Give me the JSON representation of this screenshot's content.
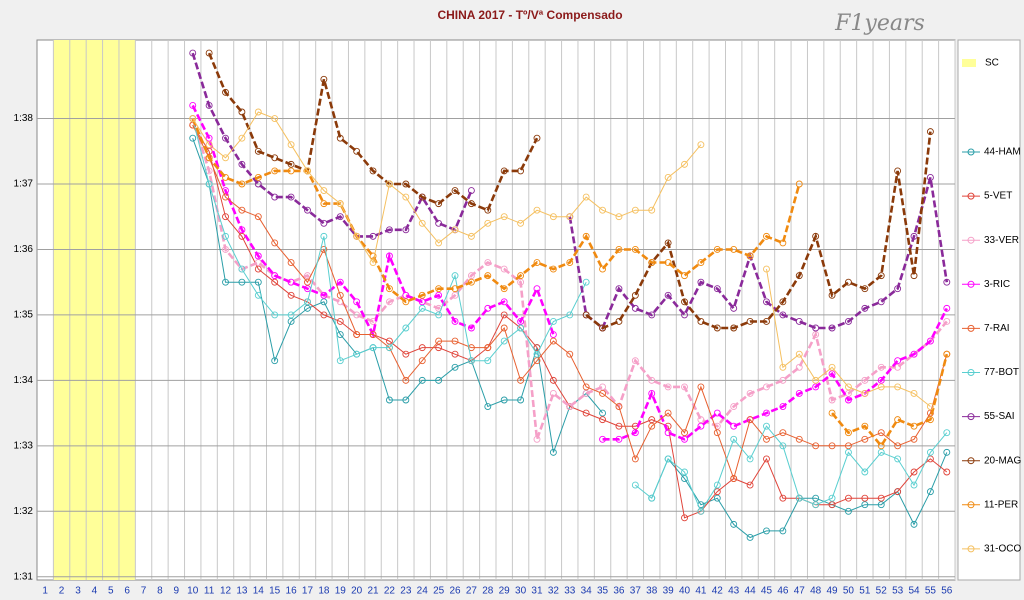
{
  "chart_data": {
    "type": "line",
    "title": "CHINA 2017 - Tº/Vª Compensado",
    "logo": "F1years",
    "x": [
      1,
      2,
      3,
      4,
      5,
      6,
      7,
      8,
      9,
      10,
      11,
      12,
      13,
      14,
      15,
      16,
      17,
      18,
      19,
      20,
      21,
      22,
      23,
      24,
      25,
      26,
      27,
      28,
      29,
      30,
      31,
      32,
      33,
      34,
      35,
      36,
      37,
      38,
      39,
      40,
      41,
      42,
      43,
      44,
      45,
      46,
      47,
      48,
      49,
      50,
      51,
      52,
      53,
      54,
      55,
      56
    ],
    "xlim": [
      0.5,
      56.5
    ],
    "ylim": [
      90.95,
      99.2
    ],
    "yticks": [
      {
        "value": 91,
        "label": "1:31"
      },
      {
        "value": 92,
        "label": "1:32"
      },
      {
        "value": 93,
        "label": "1:33"
      },
      {
        "value": 94,
        "label": "1:34"
      },
      {
        "value": 95,
        "label": "1:35"
      },
      {
        "value": 96,
        "label": "1:36"
      },
      {
        "value": 97,
        "label": "1:37"
      },
      {
        "value": 98,
        "label": "1:38"
      }
    ],
    "grid": true,
    "legend": "right",
    "safety_car": {
      "name": "SC",
      "color": "#ffff99",
      "laps": [
        2,
        3,
        4,
        5,
        6
      ]
    },
    "series": [
      {
        "name": "44-HAM",
        "color": "#2a9ea8",
        "style": "solid",
        "values": [
          null,
          null,
          null,
          null,
          null,
          null,
          null,
          null,
          null,
          97.7,
          97.0,
          95.5,
          95.5,
          95.5,
          94.3,
          94.9,
          95.1,
          95.2,
          94.7,
          94.4,
          94.5,
          93.7,
          93.7,
          94.0,
          94.0,
          94.2,
          94.3,
          93.6,
          93.7,
          93.7,
          94.5,
          92.9,
          93.6,
          93.8,
          93.5,
          null,
          null,
          92.2,
          92.8,
          92.5,
          92.1,
          92.2,
          91.8,
          91.6,
          91.7,
          91.7,
          92.2,
          92.2,
          92.1,
          92.0,
          92.1,
          92.1,
          92.3,
          91.8,
          92.3,
          92.9
        ]
      },
      {
        "name": "5-VET",
        "color": "#e0443a",
        "style": "solid",
        "values": [
          null,
          null,
          null,
          null,
          null,
          null,
          null,
          null,
          null,
          97.9,
          97.5,
          96.5,
          96.2,
          95.7,
          95.5,
          95.3,
          95.2,
          95.0,
          94.9,
          94.7,
          94.7,
          94.6,
          94.4,
          94.5,
          94.5,
          94.4,
          94.3,
          94.5,
          95.0,
          94.8,
          94.5,
          94.0,
          93.6,
          93.5,
          93.4,
          93.3,
          93.3,
          93.4,
          93.3,
          91.9,
          92.0,
          92.3,
          92.5,
          92.4,
          92.8,
          92.2,
          92.2,
          92.1,
          92.1,
          92.2,
          92.2,
          92.2,
          92.3,
          92.6,
          92.8,
          92.6
        ]
      },
      {
        "name": "33-VER",
        "color": "#f5a0c8",
        "style": "dashed",
        "values": [
          null,
          null,
          null,
          null,
          null,
          null,
          null,
          null,
          null,
          98.0,
          97.2,
          96.0,
          95.7,
          95.8,
          95.6,
          95.5,
          95.6,
          95.3,
          95.2,
          95.0,
          94.9,
          95.2,
          95.3,
          95.2,
          95.1,
          95.3,
          95.6,
          95.8,
          95.7,
          95.5,
          93.1,
          93.8,
          93.6,
          93.8,
          93.9,
          93.6,
          94.3,
          94.0,
          93.9,
          93.9,
          93.4,
          93.3,
          93.6,
          93.8,
          93.9,
          94.0,
          94.2,
          94.7,
          93.7,
          93.8,
          94.0,
          94.2,
          94.2,
          94.4,
          94.6,
          94.9
        ]
      },
      {
        "name": "3-RIC",
        "color": "#ff00ff",
        "style": "dashed",
        "values": [
          null,
          null,
          null,
          null,
          null,
          null,
          null,
          null,
          null,
          98.2,
          97.7,
          96.9,
          96.3,
          95.9,
          95.6,
          95.5,
          95.4,
          95.3,
          95.5,
          95.2,
          94.7,
          95.9,
          95.3,
          95.2,
          95.3,
          94.9,
          94.8,
          95.1,
          95.2,
          94.9,
          95.4,
          94.7,
          null,
          null,
          93.1,
          93.1,
          93.2,
          93.8,
          93.2,
          93.1,
          93.3,
          93.5,
          93.3,
          93.4,
          93.5,
          93.6,
          93.8,
          93.9,
          94.1,
          93.7,
          93.8,
          94.0,
          94.3,
          94.4,
          94.6,
          95.1
        ]
      },
      {
        "name": "7-RAI",
        "color": "#e86030",
        "style": "solid",
        "values": [
          null,
          null,
          null,
          null,
          null,
          null,
          null,
          null,
          null,
          97.9,
          97.4,
          96.8,
          96.6,
          96.5,
          96.1,
          95.8,
          95.5,
          96.0,
          95.3,
          94.7,
          94.7,
          94.5,
          94.0,
          94.3,
          94.6,
          94.6,
          94.5,
          94.5,
          94.8,
          94.0,
          94.3,
          94.6,
          94.4,
          93.9,
          93.8,
          93.6,
          92.8,
          93.3,
          93.5,
          93.2,
          93.9,
          93.2,
          92.5,
          93.4,
          93.1,
          93.2,
          93.1,
          93.0,
          93.0,
          93.0,
          93.1,
          93.2,
          93.0,
          93.1,
          93.5,
          94.4
        ]
      },
      {
        "name": "77-BOT",
        "color": "#5acfd0",
        "style": "solid",
        "values": [
          null,
          null,
          null,
          null,
          null,
          null,
          null,
          null,
          null,
          98.0,
          97.0,
          96.2,
          95.7,
          95.3,
          95.0,
          95.0,
          95.2,
          96.2,
          94.3,
          94.4,
          94.5,
          94.5,
          94.8,
          95.1,
          95.0,
          95.6,
          94.3,
          94.3,
          94.6,
          94.8,
          94.4,
          94.9,
          95.0,
          95.5,
          null,
          null,
          92.4,
          92.2,
          92.8,
          92.6,
          92.0,
          92.4,
          93.1,
          92.8,
          93.3,
          93.0,
          92.2,
          92.1,
          92.2,
          92.9,
          92.6,
          92.9,
          92.8,
          92.4,
          92.9,
          93.2
        ]
      },
      {
        "name": "55-SAI",
        "color": "#8a2a9a",
        "style": "dashed",
        "values": [
          null,
          null,
          null,
          null,
          null,
          null,
          null,
          null,
          null,
          99.0,
          98.2,
          97.7,
          97.3,
          97.0,
          96.8,
          96.8,
          96.6,
          96.4,
          96.5,
          96.2,
          96.2,
          96.3,
          96.3,
          96.8,
          96.4,
          96.3,
          96.9,
          null,
          null,
          null,
          null,
          null,
          96.5,
          95.0,
          94.8,
          95.4,
          95.1,
          95.0,
          95.3,
          95.0,
          95.5,
          95.4,
          95.1,
          95.9,
          95.2,
          95.0,
          94.9,
          94.8,
          94.8,
          94.9,
          95.1,
          95.2,
          95.4,
          96.2,
          97.1,
          95.5
        ]
      },
      {
        "name": "20-MAG",
        "color": "#8b3a0a",
        "style": "dashed",
        "values": [
          null,
          null,
          null,
          null,
          null,
          null,
          null,
          null,
          null,
          null,
          99.0,
          98.4,
          98.1,
          97.5,
          97.4,
          97.3,
          97.2,
          98.6,
          97.7,
          97.5,
          97.2,
          97.0,
          97.0,
          96.8,
          96.7,
          96.9,
          96.7,
          96.6,
          97.2,
          97.2,
          97.7,
          null,
          null,
          95.0,
          94.8,
          94.9,
          95.3,
          95.8,
          96.1,
          95.2,
          94.9,
          94.8,
          94.8,
          94.9,
          94.9,
          95.2,
          95.6,
          96.2,
          95.3,
          95.5,
          95.4,
          95.6,
          97.2,
          95.6,
          97.8,
          null
        ]
      },
      {
        "name": "11-PER",
        "color": "#f08a10",
        "style": "dashed",
        "values": [
          null,
          null,
          null,
          null,
          null,
          null,
          null,
          null,
          null,
          98.0,
          97.4,
          97.1,
          97.0,
          97.1,
          97.2,
          97.2,
          97.2,
          96.7,
          96.7,
          96.2,
          95.9,
          95.4,
          95.2,
          95.3,
          95.4,
          95.4,
          95.5,
          95.6,
          95.4,
          95.6,
          95.8,
          95.7,
          95.8,
          96.2,
          95.7,
          96.0,
          96.0,
          95.8,
          95.8,
          95.6,
          95.8,
          96.0,
          96.0,
          95.9,
          96.2,
          96.1,
          97.0,
          null,
          93.5,
          93.2,
          93.3,
          93.0,
          93.4,
          93.3,
          93.4,
          94.4
        ]
      },
      {
        "name": "31-OCO",
        "color": "#f5c060",
        "style": "solid",
        "values": [
          null,
          null,
          null,
          null,
          null,
          null,
          null,
          null,
          null,
          98.0,
          97.6,
          97.4,
          97.7,
          98.1,
          98.0,
          97.6,
          97.2,
          96.9,
          96.7,
          96.2,
          95.8,
          97.0,
          96.8,
          96.4,
          96.1,
          96.3,
          96.2,
          96.4,
          96.5,
          96.4,
          96.6,
          96.5,
          96.5,
          96.8,
          96.6,
          96.5,
          96.6,
          96.6,
          97.1,
          97.3,
          97.6,
          null,
          null,
          null,
          95.7,
          94.2,
          94.4,
          94.0,
          94.2,
          93.9,
          93.8,
          93.9,
          93.9,
          93.8,
          93.6,
          null
        ]
      }
    ]
  }
}
